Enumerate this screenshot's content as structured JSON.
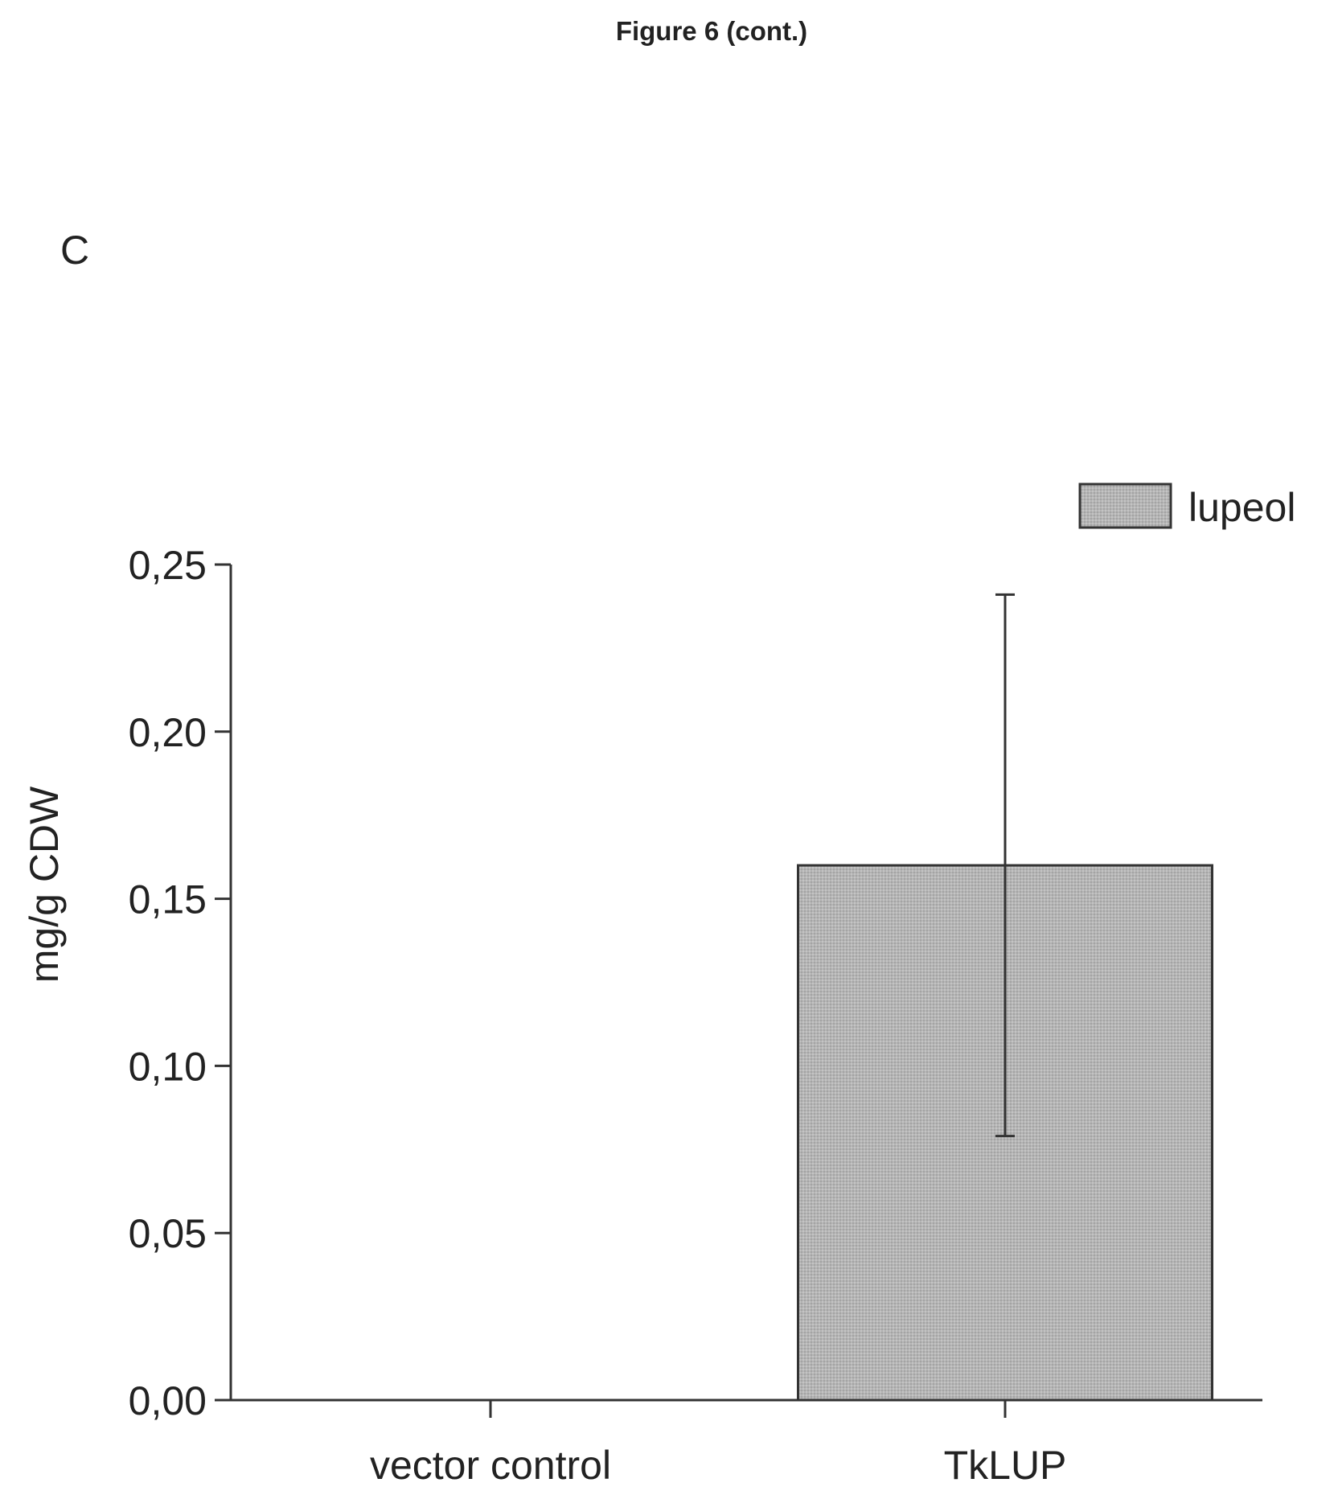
{
  "page": {
    "figure_heading": "Figure 6 (cont.)",
    "panel_letter": "C"
  },
  "chart_data": {
    "type": "bar",
    "categories": [
      "vector control",
      "TkLUP"
    ],
    "series": [
      {
        "name": "lupeol",
        "values": [
          0.0,
          0.16
        ],
        "error": [
          0.0,
          0.081
        ],
        "color": "#b5b5b5"
      }
    ],
    "ylabel": "mg/g CDW",
    "xlabel": "",
    "ylim": [
      0.0,
      0.25
    ],
    "yticks": [
      "0,00",
      "0,05",
      "0,10",
      "0,15",
      "0,20",
      "0,25"
    ],
    "ytick_values": [
      0.0,
      0.05,
      0.1,
      0.15,
      0.2,
      0.25
    ],
    "grid": false,
    "legend_position": "top-right"
  }
}
